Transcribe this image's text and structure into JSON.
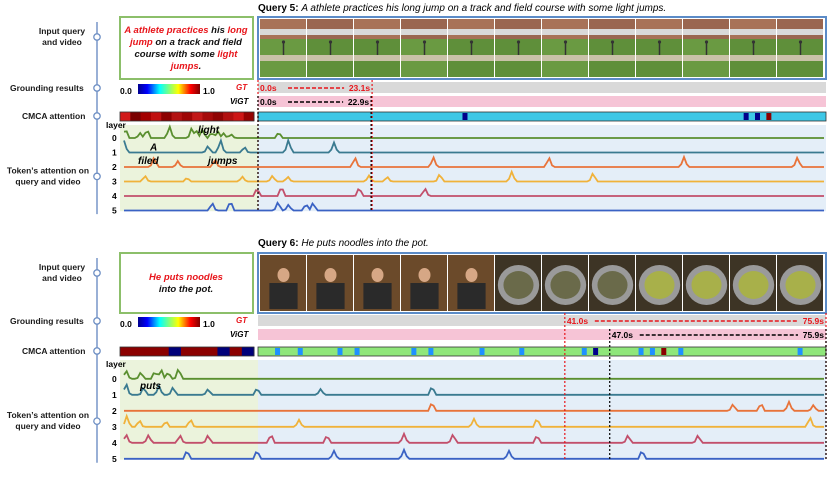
{
  "queries": [
    {
      "title_prefix": "Query 5:",
      "title_text": "A athlete practices his long jump on a track and field course with some light jumps.",
      "box_lines": [
        [
          {
            "t": "A ",
            "red": true
          },
          {
            "t": "athlete practices",
            "red": true
          },
          {
            "t": " his ",
            "red": false
          },
          {
            "t": "long",
            "red": true
          }
        ],
        [
          {
            "t": "jump",
            "red": true
          },
          {
            "t": " on a track and field",
            "red": false
          }
        ],
        [
          {
            "t": "course with some ",
            "red": false
          },
          {
            "t": "light",
            "red": true
          }
        ],
        [
          {
            "t": "jumps",
            "red": true
          },
          {
            "t": ".",
            "red": false
          }
        ]
      ],
      "gt": {
        "label": "GT",
        "start": "0.0s",
        "end": "23.1s",
        "start_sec": 0.0,
        "end_sec": 23.1,
        "duration_sec": 115.0
      },
      "vigt": {
        "label": "ViGT",
        "start": "0.0s",
        "end": "22.9s",
        "start_sec": 0.0,
        "end_sec": 22.9
      },
      "scale_min": "0.0",
      "scale_max": "1.0",
      "tokens": [
        {
          "text": "light",
          "layer": 0
        },
        {
          "text": "A",
          "layer": 1
        },
        {
          "text": "filed",
          "layer": 2
        },
        {
          "text": "jumps",
          "layer": 2
        }
      ],
      "cmca_query_colors": [
        "#d11a1a",
        "#7a0000",
        "#a30000",
        "#c01010",
        "#8c0000",
        "#b31212",
        "#9e0606",
        "#c21818",
        "#a50a0a",
        "#8f0303",
        "#b10f0f",
        "#cd1616",
        "#950202"
      ],
      "cmca_video_highlights": [
        {
          "pos": 0.36,
          "color": "#00008b"
        },
        {
          "pos": 0.855,
          "color": "#00008b"
        },
        {
          "pos": 0.875,
          "color": "#00008b"
        },
        {
          "pos": 0.895,
          "color": "#8b0000"
        }
      ]
    },
    {
      "title_prefix": "Query 6:",
      "title_text": "He puts noodles into the pot.",
      "box_lines": [
        [
          {
            "t": "He puts noodles",
            "red": true
          }
        ],
        [
          {
            "t": "into the pot.",
            "red": false
          }
        ]
      ],
      "gt": {
        "label": "GT",
        "start": "41.0s",
        "end": "75.9s",
        "start_sec": 41.0,
        "end_sec": 75.9,
        "duration_sec": 75.9
      },
      "vigt": {
        "label": "ViGT",
        "start": "47.0s",
        "end": "75.9s",
        "start_sec": 47.0,
        "end_sec": 75.9
      },
      "scale_min": "0.0",
      "scale_max": "1.0",
      "tokens": [
        {
          "text": "puts",
          "layer": 1
        }
      ],
      "cmca_query_colors": [
        "#8b0000",
        "#8b0000",
        "#8b0000",
        "#8b0000",
        "#00007a",
        "#8b0000",
        "#8b0000",
        "#8b0000",
        "#00007a",
        "#8b0000",
        "#00007a"
      ],
      "cmca_video_highlights": [
        {
          "pos": 0.03,
          "color": "#1e90ff"
        },
        {
          "pos": 0.07,
          "color": "#1e90ff"
        },
        {
          "pos": 0.14,
          "color": "#1e90ff"
        },
        {
          "pos": 0.17,
          "color": "#1e90ff"
        },
        {
          "pos": 0.27,
          "color": "#1e90ff"
        },
        {
          "pos": 0.3,
          "color": "#1e90ff"
        },
        {
          "pos": 0.39,
          "color": "#1e90ff"
        },
        {
          "pos": 0.46,
          "color": "#1e90ff"
        },
        {
          "pos": 0.57,
          "color": "#1e90ff"
        },
        {
          "pos": 0.59,
          "color": "#00008b"
        },
        {
          "pos": 0.67,
          "color": "#1e90ff"
        },
        {
          "pos": 0.69,
          "color": "#1e90ff"
        },
        {
          "pos": 0.71,
          "color": "#8b0000"
        },
        {
          "pos": 0.74,
          "color": "#1e90ff"
        },
        {
          "pos": 0.95,
          "color": "#1e90ff"
        }
      ]
    }
  ],
  "row_labels": {
    "input": [
      "Input query",
      "and video"
    ],
    "grounding": "Grounding results",
    "cmca": "CMCA attention",
    "token": [
      "Token’s attention on",
      "query and video"
    ],
    "layer": "layer",
    "layers": [
      "0",
      "1",
      "2",
      "3",
      "4",
      "5"
    ]
  },
  "layer_colors": [
    "#5a8f2f",
    "#3a7a90",
    "#e8733a",
    "#f0b23a",
    "#c24f6b",
    "#3a62c4"
  ],
  "colors": {
    "frame_border": "#5b8bc7",
    "query_box_border": "#8cbf6a",
    "timeline_gray": "#d9d9d9",
    "timeline_pink": "#f6c4d6",
    "cmca_video_bg": "#3dc7e6",
    "cmca_video_bg2": "#8fe67a",
    "query_panel_bg": "#ebf3dc",
    "video_panel_bg": "#e4eef8"
  }
}
